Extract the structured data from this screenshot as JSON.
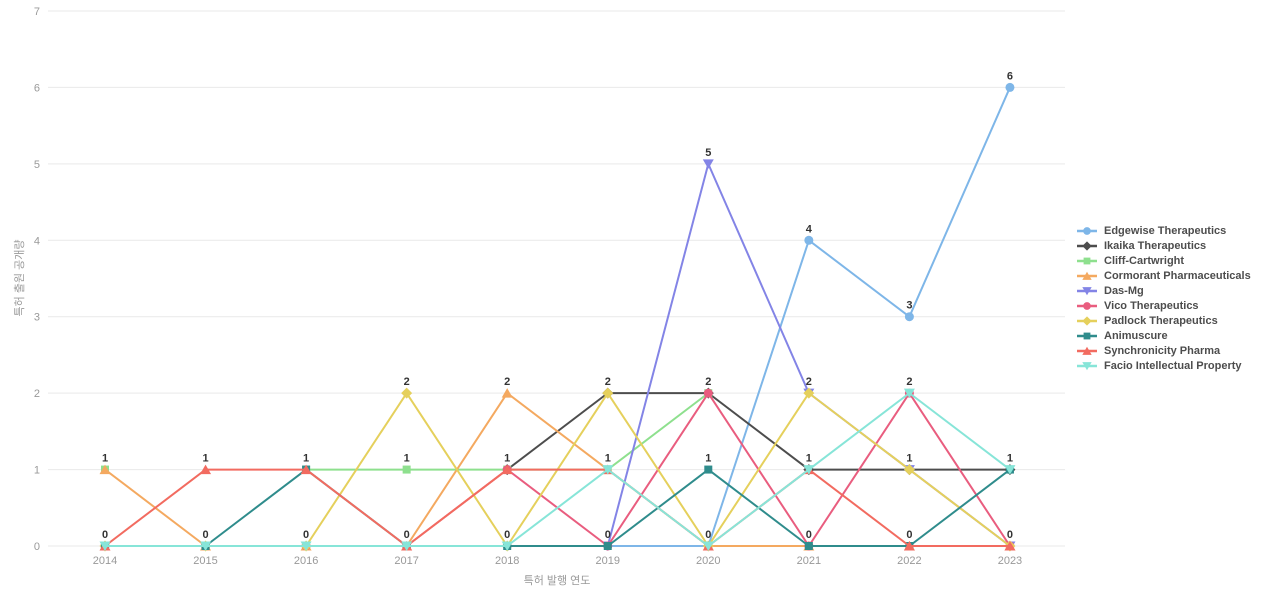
{
  "chart_data": {
    "type": "line",
    "title": "",
    "xlabel": "특허 발행 연도",
    "ylabel": "특허 출원 공개량",
    "x": [
      2014,
      2015,
      2016,
      2017,
      2018,
      2019,
      2020,
      2021,
      2022,
      2023
    ],
    "ylim": [
      0,
      7
    ],
    "yticks": [
      0,
      1,
      2,
      3,
      4,
      5,
      6,
      7
    ],
    "grid": true,
    "grid_color": "#e9e9e9",
    "tick_color": "#999999",
    "value_label_color": "#333333",
    "legend_position": "right",
    "series": [
      {
        "name": "Edgewise Therapeutics",
        "color": "#7eb6e8",
        "marker": "circle",
        "values": [
          0,
          0,
          0,
          0,
          0,
          0,
          0,
          4,
          3,
          6
        ]
      },
      {
        "name": "Ikaika Therapeutics",
        "color": "#4d4d4d",
        "marker": "diamond",
        "values": [
          null,
          null,
          null,
          null,
          1,
          2,
          2,
          1,
          1,
          1
        ]
      },
      {
        "name": "Cliff-Cartwright",
        "color": "#8ee08e",
        "marker": "square",
        "values": [
          1,
          null,
          1,
          1,
          1,
          1,
          2,
          null,
          null,
          null
        ]
      },
      {
        "name": "Cormorant Pharmaceuticals",
        "color": "#f4a960",
        "marker": "triangle-up",
        "values": [
          1,
          0,
          0,
          0,
          2,
          1,
          0,
          0,
          0,
          0
        ]
      },
      {
        "name": "Das-Mg",
        "color": "#8384e6",
        "marker": "triangle-down",
        "values": [
          null,
          null,
          null,
          null,
          null,
          0,
          5,
          2,
          1,
          0
        ]
      },
      {
        "name": "Vico Therapeutics",
        "color": "#e95d7f",
        "marker": "circle",
        "values": [
          0,
          0,
          0,
          0,
          1,
          0,
          2,
          0,
          2,
          0
        ]
      },
      {
        "name": "Padlock Therapeutics",
        "color": "#e5d05c",
        "marker": "diamond",
        "values": [
          0,
          0,
          0,
          2,
          0,
          2,
          0,
          2,
          1,
          0
        ]
      },
      {
        "name": "Animuscure",
        "color": "#2f8c8c",
        "marker": "square",
        "values": [
          0,
          0,
          1,
          0,
          0,
          0,
          1,
          0,
          0,
          1
        ]
      },
      {
        "name": "Synchronicity Pharma",
        "color": "#f26b60",
        "marker": "triangle-up",
        "values": [
          0,
          1,
          1,
          0,
          1,
          1,
          0,
          1,
          0,
          0
        ]
      },
      {
        "name": "Facio Intellectual Property",
        "color": "#87e5d8",
        "marker": "triangle-down",
        "values": [
          0,
          0,
          0,
          0,
          0,
          1,
          0,
          1,
          2,
          1
        ]
      }
    ]
  }
}
